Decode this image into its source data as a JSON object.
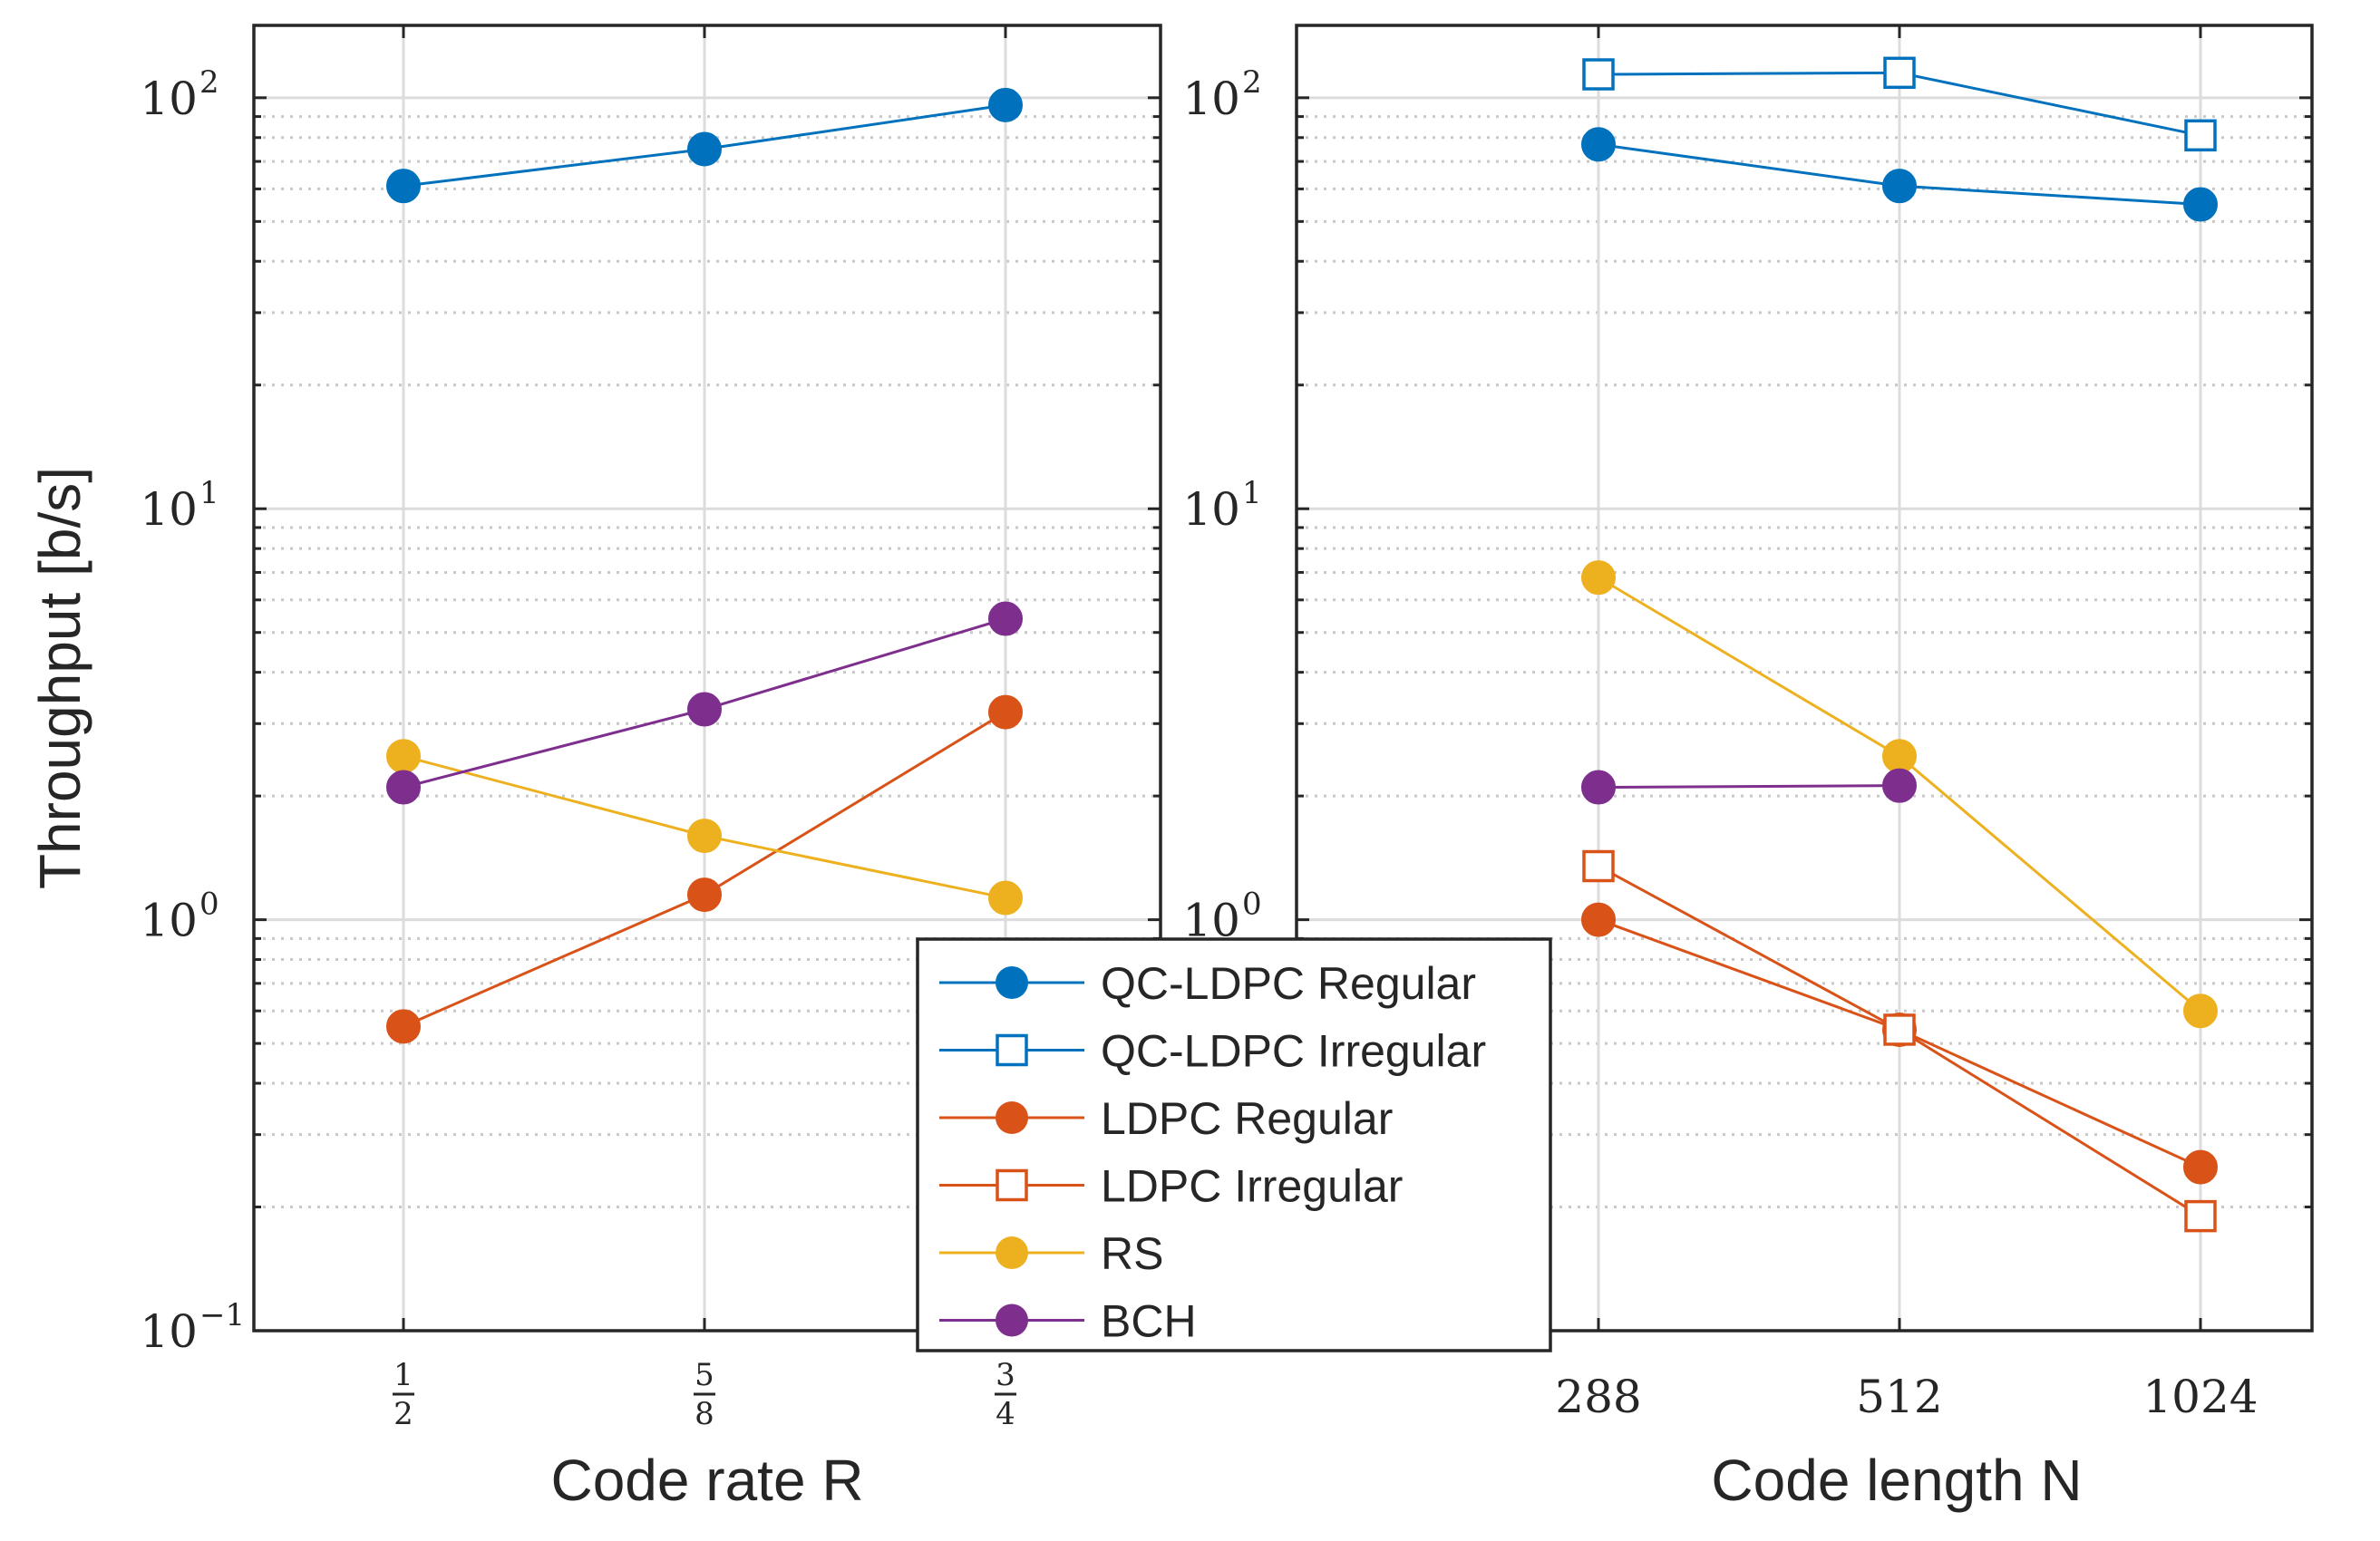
{
  "chart_data": [
    {
      "type": "line",
      "name": "left-panel",
      "yscale": "log",
      "ylim": [
        0.1,
        150
      ],
      "ylabel": "Throughput [b/s]",
      "xlabel": "Code rate R",
      "categories": [
        "1/2",
        "5/8",
        "3/4"
      ],
      "x_tick_labels": [
        {
          "num": "1",
          "den": "2"
        },
        {
          "num": "5",
          "den": "8"
        },
        {
          "num": "3",
          "den": "4"
        }
      ],
      "y_tick_labels": [
        {
          "base": "10",
          "exp": "2",
          "value": 100
        },
        {
          "base": "10",
          "exp": "1",
          "value": 10
        },
        {
          "base": "10",
          "exp": "0",
          "value": 1
        },
        {
          "base": "10",
          "exp": "−1",
          "value": 0.1
        }
      ],
      "grid": true,
      "series": [
        {
          "name": "QC-LDPC Regular",
          "color": "#0072BD",
          "marker": "circle-filled",
          "values": [
            61,
            75,
            96
          ]
        },
        {
          "name": "LDPC Regular",
          "color": "#D95319",
          "marker": "circle-filled",
          "values": [
            0.55,
            1.15,
            3.2
          ]
        },
        {
          "name": "RS",
          "color": "#EDB120",
          "marker": "circle-filled",
          "values": [
            2.5,
            1.6,
            1.13
          ]
        },
        {
          "name": "BCH",
          "color": "#7E2F8E",
          "marker": "circle-filled",
          "values": [
            2.1,
            3.25,
            5.4
          ]
        }
      ]
    },
    {
      "type": "line",
      "name": "right-panel",
      "yscale": "log",
      "ylim": [
        0.1,
        150
      ],
      "ylabel": "",
      "xlabel": "Code length N",
      "categories": [
        "288",
        "512",
        "1024"
      ],
      "y_tick_labels": [
        {
          "base": "10",
          "exp": "2",
          "value": 100
        },
        {
          "base": "10",
          "exp": "1",
          "value": 10
        },
        {
          "base": "10",
          "exp": "0",
          "value": 1
        }
      ],
      "grid": true,
      "series": [
        {
          "name": "QC-LDPC Regular",
          "color": "#0072BD",
          "marker": "circle-filled",
          "values": [
            77,
            61,
            55
          ]
        },
        {
          "name": "QC-LDPC Irregular",
          "color": "#0072BD",
          "marker": "square-open",
          "values": [
            114,
            115,
            81
          ]
        },
        {
          "name": "LDPC Regular",
          "color": "#D95319",
          "marker": "circle-filled",
          "values": [
            1.0,
            0.54,
            0.25
          ]
        },
        {
          "name": "LDPC Irregular",
          "color": "#D95319",
          "marker": "square-open",
          "values": [
            1.35,
            0.54,
            0.19
          ]
        },
        {
          "name": "RS",
          "color": "#EDB120",
          "marker": "circle-filled",
          "values": [
            6.8,
            2.5,
            0.6
          ]
        },
        {
          "name": "BCH",
          "color": "#7E2F8E",
          "marker": "circle-filled",
          "values": [
            2.1,
            2.12,
            null
          ]
        }
      ]
    }
  ],
  "legend": {
    "placement": "center",
    "entries": [
      {
        "label": "QC-LDPC Regular",
        "color": "#0072BD",
        "marker": "circle-filled"
      },
      {
        "label": "QC-LDPC Irregular",
        "color": "#0072BD",
        "marker": "square-open"
      },
      {
        "label": "LDPC Regular",
        "color": "#D95319",
        "marker": "circle-filled"
      },
      {
        "label": "LDPC Irregular",
        "color": "#D95319",
        "marker": "square-open"
      },
      {
        "label": "RS",
        "color": "#EDB120",
        "marker": "circle-filled"
      },
      {
        "label": "BCH",
        "color": "#7E2F8E",
        "marker": "circle-filled"
      }
    ]
  }
}
